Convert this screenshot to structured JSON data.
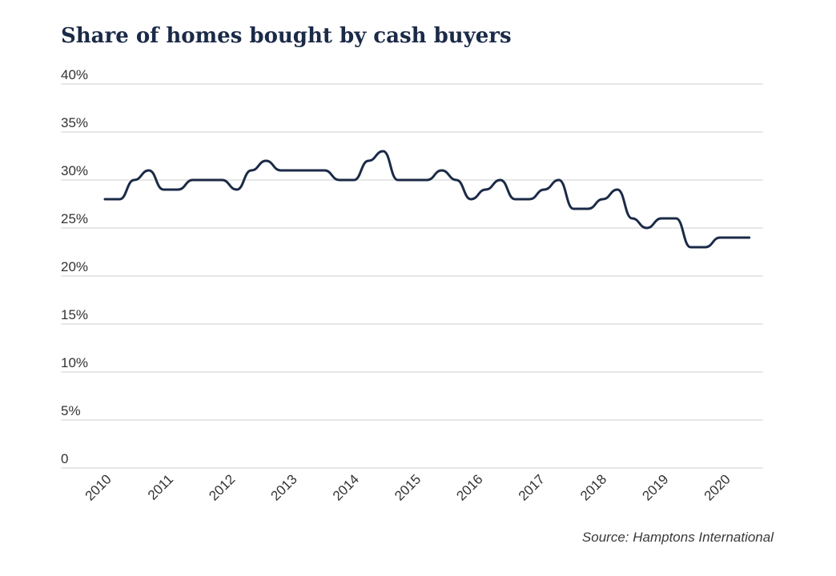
{
  "chart_data": {
    "type": "line",
    "title": "Share of homes bought by cash buyers",
    "source": "Source: Hamptons International",
    "xlabel": "",
    "ylabel": "",
    "ylim": [
      0,
      40
    ],
    "y_ticks": [
      0,
      5,
      10,
      15,
      20,
      25,
      30,
      35,
      40
    ],
    "y_tick_labels": [
      "0",
      "5%",
      "10%",
      "15%",
      "20%",
      "25%",
      "30%",
      "35%",
      "40%"
    ],
    "x_range": [
      2009.75,
      2020.85
    ],
    "x_ticks": [
      2010,
      2011,
      2012,
      2013,
      2014,
      2015,
      2016,
      2017,
      2018,
      2019,
      2020
    ],
    "x_tick_labels": [
      "2010",
      "2011",
      "2012",
      "2013",
      "2014",
      "2015",
      "2016",
      "2017",
      "2018",
      "2019",
      "2020"
    ],
    "grid": true,
    "colors": {
      "line": "#1b2a47",
      "grid": "#cfcfcf",
      "title": "#1b2a47"
    },
    "series": [
      {
        "name": "Share of homes bought by cash buyers",
        "x": [
          2009.75,
          2010,
          2010.25,
          2010.5,
          2010.75,
          2011,
          2011.25,
          2011.5,
          2011.75,
          2012,
          2012.25,
          2012.5,
          2012.75,
          2013,
          2013.25,
          2013.5,
          2013.75,
          2014,
          2014.25,
          2014.5,
          2014.75,
          2015,
          2015.25,
          2015.5,
          2015.75,
          2016,
          2016.25,
          2016.5,
          2016.75,
          2017,
          2017.25,
          2017.5,
          2017.75,
          2018,
          2018.25,
          2018.5,
          2018.75,
          2019,
          2019.25,
          2019.5,
          2019.75,
          2020,
          2020.25,
          2020.5,
          2020.75
        ],
        "values": [
          28,
          28,
          30,
          31,
          29,
          29,
          30,
          30,
          30,
          29,
          31,
          32,
          31,
          31,
          31,
          31,
          30,
          30,
          32,
          33,
          30,
          30,
          30,
          31,
          30,
          28,
          29,
          30,
          28,
          28,
          29,
          30,
          27,
          27,
          28,
          29,
          26,
          25,
          26,
          26,
          23,
          23,
          24,
          24,
          24
        ]
      }
    ]
  }
}
